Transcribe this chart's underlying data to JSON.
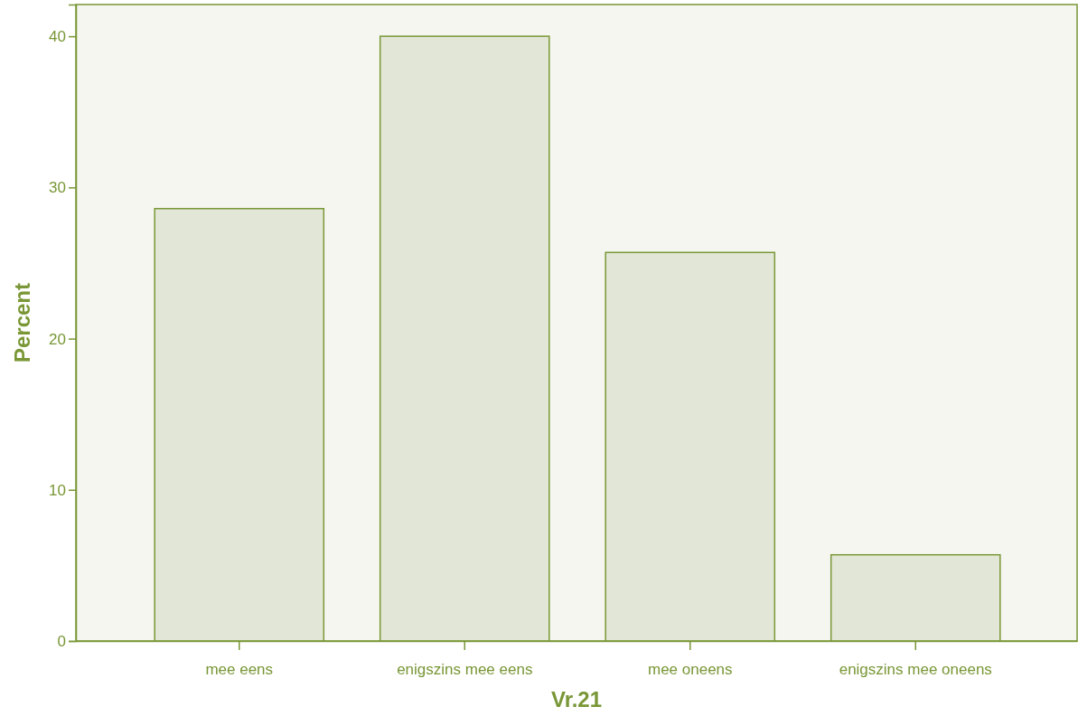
{
  "chart_data": {
    "type": "bar",
    "xlabel": "Vr.21",
    "ylabel": "Percent",
    "categories": [
      "mee eens",
      "enigszins mee eens",
      "mee oneens",
      "enigszins mee oneens"
    ],
    "values": [
      28.6,
      40,
      25.7,
      5.7
    ],
    "color": "#e2e6d6",
    "ylim": [
      0,
      42.1
    ],
    "yticks": [
      0,
      10,
      20,
      30,
      40
    ],
    "grid": false
  }
}
